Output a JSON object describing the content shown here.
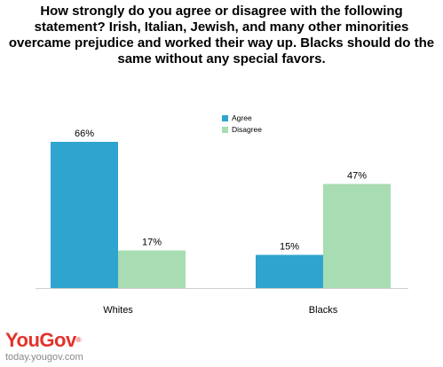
{
  "chart_data": {
    "type": "bar",
    "title": "How strongly do you agree or disagree with the following statement? Irish, Italian, Jewish, and many other minorities overcame prejudice and worked their way up. Blacks should do the same without any special favors.",
    "categories": [
      "Whites",
      "Blacks"
    ],
    "series": [
      {
        "name": "Agree",
        "values": [
          66,
          15
        ],
        "labels": [
          "66%",
          "15%"
        ],
        "color": "#2fa4cf"
      },
      {
        "name": "Disagree",
        "values": [
          17,
          47
        ],
        "labels": [
          "17%",
          "47%"
        ],
        "color": "#a8dcb2"
      }
    ],
    "ylim": [
      0,
      70
    ],
    "grid": false,
    "legend": "top-center"
  },
  "branding": {
    "logo": "YouGov",
    "site": "today.yougov.com"
  }
}
